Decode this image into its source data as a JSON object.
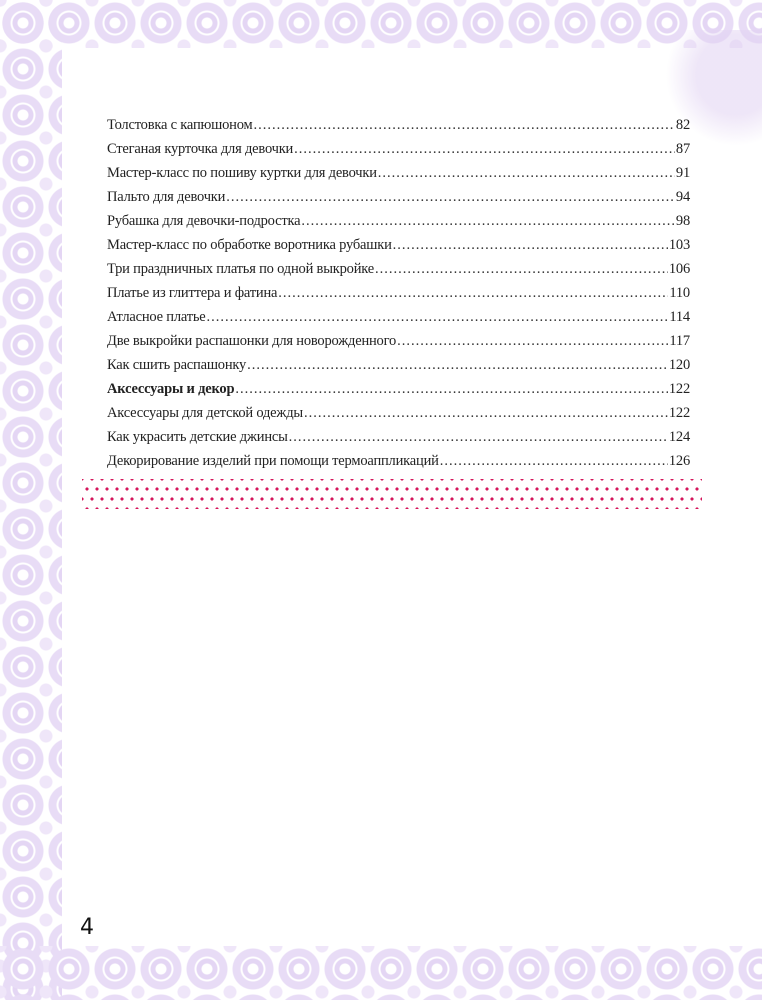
{
  "toc": [
    {
      "title": "Толстовка с капюшоном",
      "page": "82"
    },
    {
      "title": "Стеганая курточка для девочки",
      "page": "87"
    },
    {
      "title": "Мастер-класс по пошиву куртки для девочки",
      "page": "91"
    },
    {
      "title": "Пальто для девочки",
      "page": "94"
    },
    {
      "title": "Рубашка для девочки-подростка",
      "page": "98"
    },
    {
      "title": "Мастер-класс по обработке воротника рубашки",
      "page": "103"
    },
    {
      "title": "Три праздничных платья по одной выкройке",
      "page": "106"
    },
    {
      "title": "Платье из глиттера и фатина",
      "page": "110"
    },
    {
      "title": "Атласное платье",
      "page": "114"
    },
    {
      "title": "Две выкройки распашонки для новорожденного",
      "page": "117"
    },
    {
      "title": "Как сшить распашонку",
      "page": "120"
    },
    {
      "title": "Аксессуары и декор",
      "page": "122",
      "bold": true
    },
    {
      "title": "Аксессуары для детской одежды",
      "page": "122"
    },
    {
      "title": "Как украсить детские джинсы",
      "page": "124"
    },
    {
      "title": "Декорирование изделий при помощи термоаппликаций",
      "page": "126"
    }
  ],
  "page_number": "4",
  "colors": {
    "border": "#e6d9f5",
    "dots": "#d4145a"
  }
}
